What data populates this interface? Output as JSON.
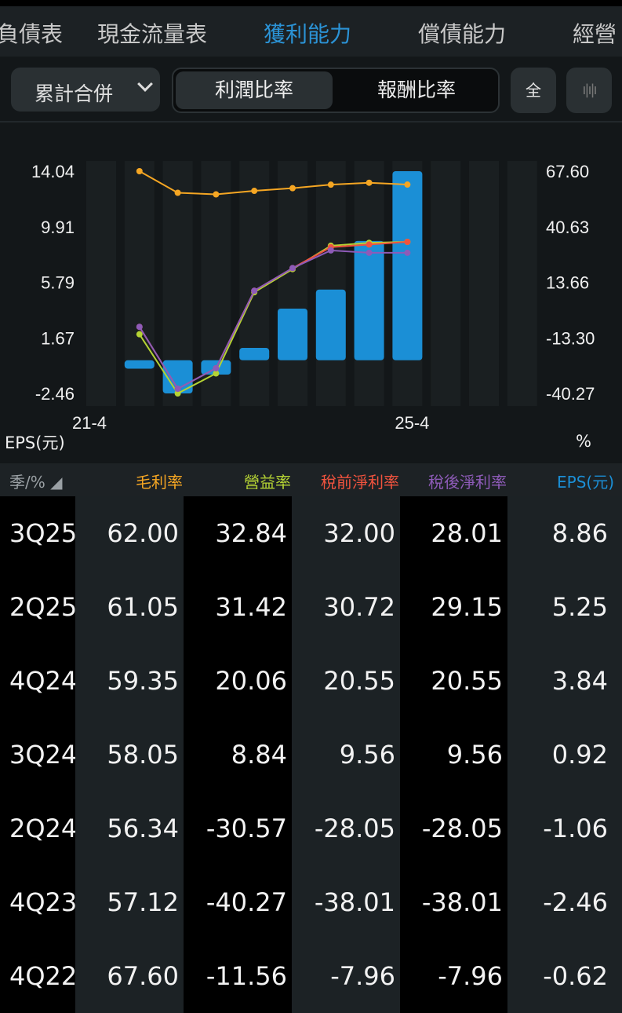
{
  "tabs": [
    {
      "label": "負債表"
    },
    {
      "label": "現金流量表"
    },
    {
      "label": "獲利能力",
      "active": true
    },
    {
      "label": "償債能力"
    },
    {
      "label": "經營"
    }
  ],
  "toolbar": {
    "dropdown": "累計合併",
    "seg_profit": "利潤比率",
    "seg_return": "報酬比率",
    "all_label": "全",
    "wave_icon": "waveform-icon"
  },
  "colors": {
    "accent": "#1f8fd3",
    "gross": "#f5a623",
    "operating": "#b5d334",
    "pretax": "#f0533e",
    "net": "#8e5bb8",
    "eps": "#1b8fd6"
  },
  "chart_data": {
    "type": "bar+line",
    "xtick_labels": [
      "21-4",
      "25-4"
    ],
    "left_axis": {
      "label": "EPS(元)",
      "ticks": [
        "14.04",
        "9.91",
        "5.79",
        "1.67",
        "-2.46"
      ],
      "range": [
        -2.46,
        14.04
      ]
    },
    "right_axis": {
      "label": "%",
      "ticks": [
        "67.60",
        "40.63",
        "13.66",
        "-13.30",
        "-40.27"
      ],
      "range": [
        -40.27,
        67.6
      ]
    },
    "bars": {
      "name": "EPS(元)",
      "values": [
        -0.62,
        -2.46,
        -1.06,
        0.92,
        3.84,
        5.25,
        8.86,
        14.04
      ]
    },
    "series": [
      {
        "name": "毛利率",
        "values": [
          67.6,
          57.12,
          56.34,
          58.05,
          59.35,
          61.05,
          62.0,
          61.1
        ]
      },
      {
        "name": "營益率",
        "values": [
          -11.56,
          -40.27,
          -30.57,
          8.84,
          20.06,
          31.42,
          32.84,
          33.3
        ]
      },
      {
        "name": "稅前淨利率",
        "values": [
          -7.96,
          -38.01,
          -28.05,
          9.56,
          20.55,
          30.72,
          32.0,
          33.3
        ]
      },
      {
        "name": "稅後淨利率",
        "values": [
          -7.96,
          -38.01,
          -28.05,
          9.56,
          20.55,
          29.15,
          28.01,
          28.0
        ]
      }
    ]
  },
  "table": {
    "headers": [
      "季/%",
      "毛利率",
      "營益率",
      "稅前淨利率",
      "稅後淨利率",
      "EPS(元)"
    ],
    "rows": [
      [
        "3Q25",
        "62.00",
        "32.84",
        "32.00",
        "28.01",
        "8.86"
      ],
      [
        "2Q25",
        "61.05",
        "31.42",
        "30.72",
        "29.15",
        "5.25"
      ],
      [
        "4Q24",
        "59.35",
        "20.06",
        "20.55",
        "20.55",
        "3.84"
      ],
      [
        "3Q24",
        "58.05",
        "8.84",
        "9.56",
        "9.56",
        "0.92"
      ],
      [
        "2Q24",
        "56.34",
        "-30.57",
        "-28.05",
        "-28.05",
        "-1.06"
      ],
      [
        "4Q23",
        "57.12",
        "-40.27",
        "-38.01",
        "-38.01",
        "-2.46"
      ],
      [
        "4Q22",
        "67.60",
        "-11.56",
        "-7.96",
        "-7.96",
        "-0.62"
      ]
    ]
  }
}
